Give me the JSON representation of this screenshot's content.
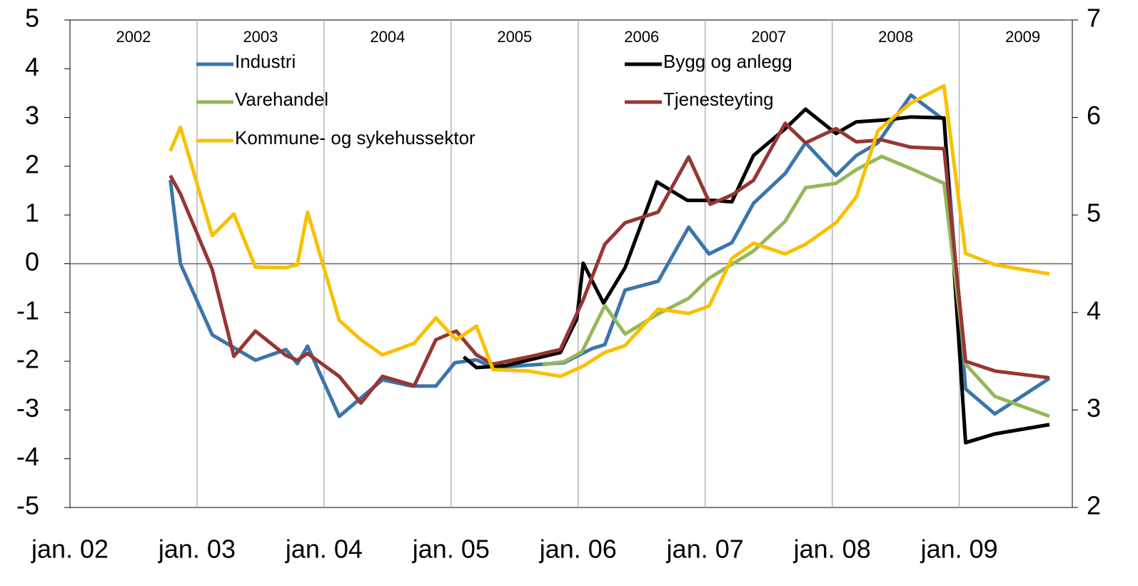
{
  "chart_data": {
    "type": "line",
    "xlim": [
      2002,
      2009.89
    ],
    "xticks": [
      {
        "value": 2002,
        "label": "jan. 02"
      },
      {
        "value": 2003,
        "label": "jan. 03"
      },
      {
        "value": 2004,
        "label": "jan. 04"
      },
      {
        "value": 2005,
        "label": "jan. 05"
      },
      {
        "value": 2006,
        "label": "jan. 06"
      },
      {
        "value": 2007,
        "label": "jan. 07"
      },
      {
        "value": 2008,
        "label": "jan. 08"
      },
      {
        "value": 2009,
        "label": "jan. 09"
      }
    ],
    "ylim": [
      -5,
      5
    ],
    "yticks": [
      -5,
      -4,
      -3,
      -2,
      -1,
      0,
      1,
      2,
      3,
      4,
      5
    ],
    "y2lim": [
      2,
      7
    ],
    "y2ticks": [
      2,
      3,
      4,
      5,
      6,
      7
    ],
    "year_labels": [
      "2002",
      "2003",
      "2004",
      "2005",
      "2006",
      "2007",
      "2008",
      "2009"
    ],
    "grid": true,
    "series": [
      {
        "name": "Industri",
        "color": "#3a75ad",
        "x": [
          2002.79,
          2002.87,
          2003.12,
          2003.46,
          2003.7,
          2003.79,
          2003.87,
          2004.12,
          2004.46,
          2004.69,
          2004.88,
          2005.03,
          2005.2,
          2005.33,
          2005.72,
          2005.89,
          2006.11,
          2006.21,
          2006.37,
          2006.63,
          2006.87,
          2007.03,
          2007.21,
          2007.38,
          2007.63,
          2007.79,
          2008.03,
          2008.19,
          2008.36,
          2008.62,
          2008.88,
          2009.05,
          2009.28,
          2009.71
        ],
        "values": [
          1.72,
          0,
          -1.46,
          -1.98,
          -1.76,
          -2.05,
          -1.69,
          -3.13,
          -2.38,
          -2.51,
          -2.51,
          -2.03,
          -1.97,
          -2.13,
          -2.06,
          -2.03,
          -1.74,
          -1.66,
          -0.54,
          -0.36,
          0.75,
          0.2,
          0.43,
          1.24,
          1.85,
          2.48,
          1.81,
          2.22,
          2.48,
          3.46,
          2.95,
          -2.57,
          -3.08,
          -2.35
        ]
      },
      {
        "name": "Bygg og anlegg",
        "color": "#000000",
        "x": [
          2005.1,
          2005.2,
          2005.43,
          2005.86,
          2005.99,
          2006.04,
          2006.2,
          2006.37,
          2006.62,
          2006.86,
          2007.06,
          2007.21,
          2007.38,
          2007.63,
          2007.79,
          2008.03,
          2008.19,
          2008.42,
          2008.62,
          2008.88,
          2009.05,
          2009.28,
          2009.71
        ],
        "values": [
          -1.91,
          -2.13,
          -2.09,
          -1.82,
          -1.13,
          0.01,
          -0.81,
          -0.08,
          1.68,
          1.3,
          1.3,
          1.27,
          2.22,
          2.77,
          3.17,
          2.67,
          2.91,
          2.95,
          3.01,
          2.99,
          -3.67,
          -3.49,
          -3.3
        ]
      },
      {
        "name": "Varehandel",
        "color": "#93b85a",
        "x": [
          2005.72,
          2005.89,
          2006.03,
          2006.21,
          2006.37,
          2006.63,
          2006.87,
          2007.03,
          2007.21,
          2007.38,
          2007.63,
          2007.79,
          2008.03,
          2008.19,
          2008.39,
          2008.62,
          2008.88,
          2009.05,
          2009.28,
          2009.71
        ],
        "values": [
          -2.07,
          -2.01,
          -1.81,
          -0.86,
          -1.44,
          -1.03,
          -0.71,
          -0.3,
          -0.01,
          0.26,
          0.87,
          1.56,
          1.65,
          1.93,
          2.2,
          1.95,
          1.65,
          -2.06,
          -2.72,
          -3.13
        ]
      },
      {
        "name": "Tjenesteyting",
        "color": "#963634",
        "x": [
          2002.79,
          2002.87,
          2003.12,
          2003.29,
          2003.46,
          2003.7,
          2003.79,
          2003.87,
          2004.12,
          2004.29,
          2004.46,
          2004.71,
          2004.88,
          2005.04,
          2005.2,
          2005.33,
          2005.61,
          2005.86,
          2006.04,
          2006.21,
          2006.37,
          2006.63,
          2006.87,
          2007.04,
          2007.21,
          2007.38,
          2007.63,
          2007.79,
          2008.03,
          2008.19,
          2008.39,
          2008.62,
          2008.88,
          2009.05,
          2009.28,
          2009.71
        ],
        "values": [
          1.81,
          1.43,
          -0.12,
          -1.9,
          -1.38,
          -1.88,
          -1.98,
          -1.84,
          -2.31,
          -2.86,
          -2.31,
          -2.5,
          -1.56,
          -1.38,
          -1.87,
          -2.06,
          -1.91,
          -1.76,
          -0.74,
          0.4,
          0.84,
          1.06,
          2.19,
          1.22,
          1.41,
          1.71,
          2.88,
          2.48,
          2.77,
          2.5,
          2.54,
          2.39,
          2.36,
          -2.0,
          -2.2,
          -2.34
        ]
      },
      {
        "name": "Kommune- og sykehussektor",
        "color": "#f9c000",
        "x": [
          2002.79,
          2002.87,
          2003.12,
          2003.29,
          2003.46,
          2003.7,
          2003.79,
          2003.87,
          2004.12,
          2004.29,
          2004.46,
          2004.71,
          2004.88,
          2005.04,
          2005.2,
          2005.33,
          2005.61,
          2005.86,
          2006.04,
          2006.21,
          2006.37,
          2006.63,
          2006.87,
          2007.03,
          2007.21,
          2007.38,
          2007.63,
          2007.79,
          2008.03,
          2008.19,
          2008.36,
          2008.62,
          2008.88,
          2009.05,
          2009.28,
          2009.71
        ],
        "values": [
          2.31,
          2.8,
          0.58,
          1.02,
          -0.07,
          -0.08,
          -0.02,
          1.06,
          -1.16,
          -1.56,
          -1.87,
          -1.63,
          -1.11,
          -1.56,
          -1.28,
          -2.17,
          -2.2,
          -2.31,
          -2.1,
          -1.82,
          -1.68,
          -0.93,
          -1.02,
          -0.87,
          0.11,
          0.42,
          0.2,
          0.4,
          0.84,
          1.37,
          2.73,
          3.3,
          3.65,
          0.21,
          -0.02,
          -0.21
        ]
      }
    ]
  }
}
